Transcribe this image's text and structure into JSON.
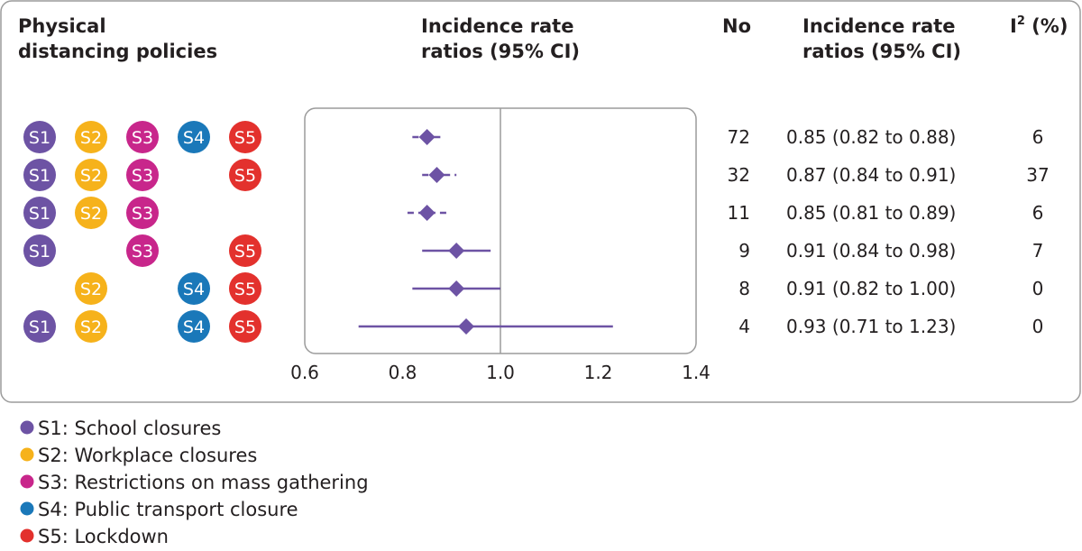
{
  "headers": {
    "policies_line1": "Physical",
    "policies_line2": "distancing policies",
    "irr_plot_line1": "Incidence rate",
    "irr_plot_line2": "ratios (95% CI)",
    "no": "No",
    "irr_text_line1": "Incidence rate",
    "irr_text_line2": "ratios (95% CI)",
    "i2_base": "I",
    "i2_sup": "2",
    "i2_unit": " (%)"
  },
  "policies": [
    {
      "code": "S1",
      "label": "S1: School closures",
      "color": "#6d53a4"
    },
    {
      "code": "S2",
      "label": "S2: Workplace closures",
      "color": "#f6b21b"
    },
    {
      "code": "S3",
      "label": "S3: Restrictions on mass gathering",
      "color": "#c8268b"
    },
    {
      "code": "S4",
      "label": "S4: Public transport closure",
      "color": "#1a78b9"
    },
    {
      "code": "S5",
      "label": "S5: Lockdown",
      "color": "#e3312d"
    }
  ],
  "chart_data": {
    "type": "forest",
    "xlim": [
      0.6,
      1.4
    ],
    "xticks": [
      "0.6",
      "0.8",
      "1.0",
      "1.2",
      "1.4"
    ],
    "reference_line": 1.0,
    "marker_color": "#6d53a4",
    "rows": [
      {
        "policies": [
          "S1",
          "S2",
          "S3",
          "S4",
          "S5"
        ],
        "n": "72",
        "estimate": 0.85,
        "lower": 0.82,
        "upper": 0.88,
        "ci_text": "0.85 (0.82 to 0.88)",
        "i2": "6"
      },
      {
        "policies": [
          "S1",
          "S2",
          "S3",
          "S5"
        ],
        "n": "32",
        "estimate": 0.87,
        "lower": 0.84,
        "upper": 0.91,
        "ci_text": "0.87 (0.84 to 0.91)",
        "i2": "37"
      },
      {
        "policies": [
          "S1",
          "S2",
          "S3"
        ],
        "n": "11",
        "estimate": 0.85,
        "lower": 0.81,
        "upper": 0.89,
        "ci_text": "0.85 (0.81 to 0.89)",
        "i2": "6"
      },
      {
        "policies": [
          "S1",
          "S3",
          "S5"
        ],
        "n": "9",
        "estimate": 0.91,
        "lower": 0.84,
        "upper": 0.98,
        "ci_text": "0.91 (0.84 to 0.98)",
        "i2": "7"
      },
      {
        "policies": [
          "S2",
          "S4",
          "S5"
        ],
        "n": "8",
        "estimate": 0.91,
        "lower": 0.82,
        "upper": 1.0,
        "ci_text": "0.91 (0.82 to 1.00)",
        "i2": "0"
      },
      {
        "policies": [
          "S1",
          "S2",
          "S4",
          "S5"
        ],
        "n": "4",
        "estimate": 0.93,
        "lower": 0.71,
        "upper": 1.23,
        "ci_text": "0.93 (0.71 to 1.23)",
        "i2": "0"
      }
    ]
  }
}
